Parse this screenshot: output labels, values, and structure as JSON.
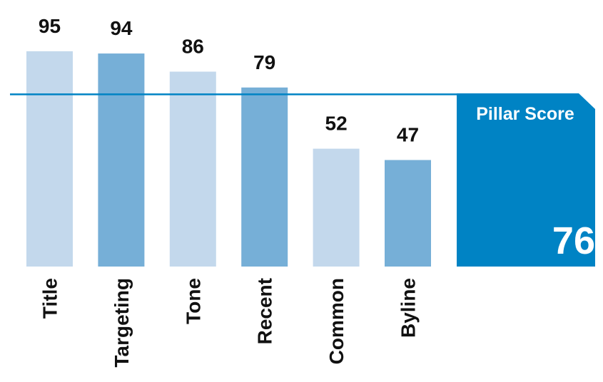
{
  "chart_data": {
    "type": "bar",
    "categories": [
      "Title",
      "Targeting",
      "Tone",
      "Recent",
      "Common",
      "Byline"
    ],
    "values": [
      95,
      94,
      86,
      79,
      52,
      47
    ],
    "ylim": [
      0,
      100
    ],
    "reference_line": 76,
    "grid": false,
    "legend": "none",
    "colors": {
      "bar_light": "#c3d8ec",
      "bar_dark": "#76afd7",
      "accent": "#0083c4",
      "text": "#111111"
    }
  },
  "pillar": {
    "title": "Pillar Score",
    "value": "76"
  }
}
